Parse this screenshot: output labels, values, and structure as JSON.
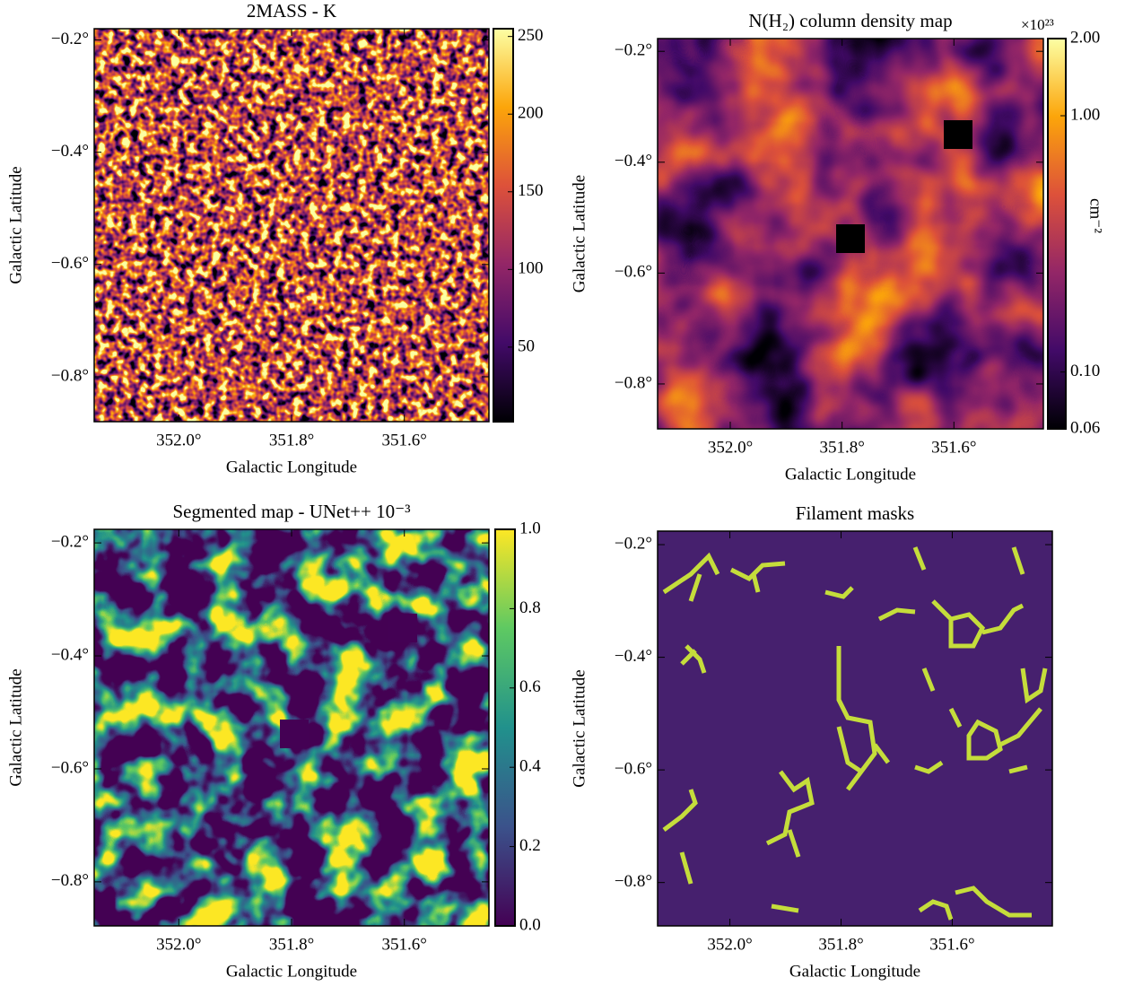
{
  "chart_data": [
    {
      "type": "heatmap",
      "title": "2MASS - K",
      "xlabel": "Galactic Longitude",
      "ylabel": "Galactic Latitude",
      "xlim": [
        352.15,
        351.45
      ],
      "ylim": [
        -0.88,
        -0.18
      ],
      "xticks": [
        {
          "value": 352.0,
          "label": "352.0°"
        },
        {
          "value": 351.8,
          "label": "351.8°"
        },
        {
          "value": 351.6,
          "label": "351.6°"
        }
      ],
      "yticks": [
        {
          "value": -0.2,
          "label": "−0.2°"
        },
        {
          "value": -0.4,
          "label": "−0.4°"
        },
        {
          "value": -0.6,
          "label": "−0.6°"
        },
        {
          "value": -0.8,
          "label": "−0.8°"
        }
      ],
      "colormap": [
        "#000004",
        "#420a68",
        "#932667",
        "#dd513a",
        "#fca50a",
        "#fcffa4"
      ],
      "colorbar": {
        "lim": [
          2,
          255
        ],
        "ticks": [
          50,
          100,
          150,
          200,
          250
        ]
      }
    },
    {
      "type": "heatmap",
      "title": "N(H₂) column density map",
      "xlabel": "Galactic Longitude",
      "ylabel": "Galactic Latitude",
      "xlim": [
        352.13,
        351.44
      ],
      "ylim": [
        -0.881,
        -0.177
      ],
      "xticks": [
        {
          "value": 352.0,
          "label": "352.0°"
        },
        {
          "value": 351.8,
          "label": "351.8°"
        },
        {
          "value": 351.6,
          "label": "351.6°"
        }
      ],
      "yticks": [
        {
          "value": -0.2,
          "label": "−0.2°"
        },
        {
          "value": -0.4,
          "label": "−0.4°"
        },
        {
          "value": -0.6,
          "label": "−0.6°"
        },
        {
          "value": -0.8,
          "label": "−0.8°"
        }
      ],
      "colormap": [
        "#000004",
        "#420a68",
        "#932667",
        "#dd513a",
        "#fca50a",
        "#fcffa4"
      ],
      "colorbar": {
        "lim": [
          0.06,
          2.0
        ],
        "scale": "log",
        "label": "cm⁻²",
        "offset": "×10²³",
        "ticks": [
          {
            "value": 0.06,
            "label": "0.06"
          },
          {
            "value": 0.1,
            "label": "0.10"
          },
          {
            "value": 1,
            "label": "1.00"
          },
          {
            "value": 2,
            "label": "2.00"
          }
        ]
      }
    },
    {
      "type": "heatmap",
      "title": "Segmented map - UNet++ 10⁻³",
      "xlabel": "Galactic Longitude",
      "ylabel": "Galactic Latitude",
      "xlim": [
        352.15,
        351.45
      ],
      "ylim": [
        -0.878,
        -0.176
      ],
      "xticks": [
        {
          "value": 352.0,
          "label": "352.0°"
        },
        {
          "value": 351.8,
          "label": "351.8°"
        },
        {
          "value": 351.6,
          "label": "351.6°"
        }
      ],
      "yticks": [
        {
          "value": -0.2,
          "label": "−0.2°"
        },
        {
          "value": -0.4,
          "label": "−0.4°"
        },
        {
          "value": -0.6,
          "label": "−0.6°"
        },
        {
          "value": -0.8,
          "label": "−0.8°"
        }
      ],
      "colormap": [
        "#440154",
        "#3b528b",
        "#21918c",
        "#5ec962",
        "#fde725"
      ],
      "colorbar": {
        "lim": [
          0,
          1
        ],
        "ticks": [
          {
            "value": 0,
            "label": "0.0"
          },
          0.2,
          0.4,
          0.6,
          0.8,
          {
            "value": 1,
            "label": "1.0"
          }
        ]
      }
    },
    {
      "type": "mask",
      "title": "Filament masks",
      "xlabel": "Galactic Longitude",
      "ylabel": "Galactic Latitude",
      "xlim": [
        352.13,
        351.42
      ],
      "ylim": [
        -0.877,
        -0.176
      ],
      "xticks": [
        {
          "value": 352.0,
          "label": "352.0°"
        },
        {
          "value": 351.8,
          "label": "351.8°"
        },
        {
          "value": 351.6,
          "label": "351.6°"
        }
      ],
      "yticks": [
        {
          "value": -0.2,
          "label": "−0.2°"
        },
        {
          "value": -0.4,
          "label": "−0.4°"
        },
        {
          "value": -0.6,
          "label": "−0.6°"
        },
        {
          "value": -0.8,
          "label": "−0.8°"
        }
      ],
      "colormap": [
        "#46206e",
        "#c5dd3b"
      ]
    }
  ]
}
